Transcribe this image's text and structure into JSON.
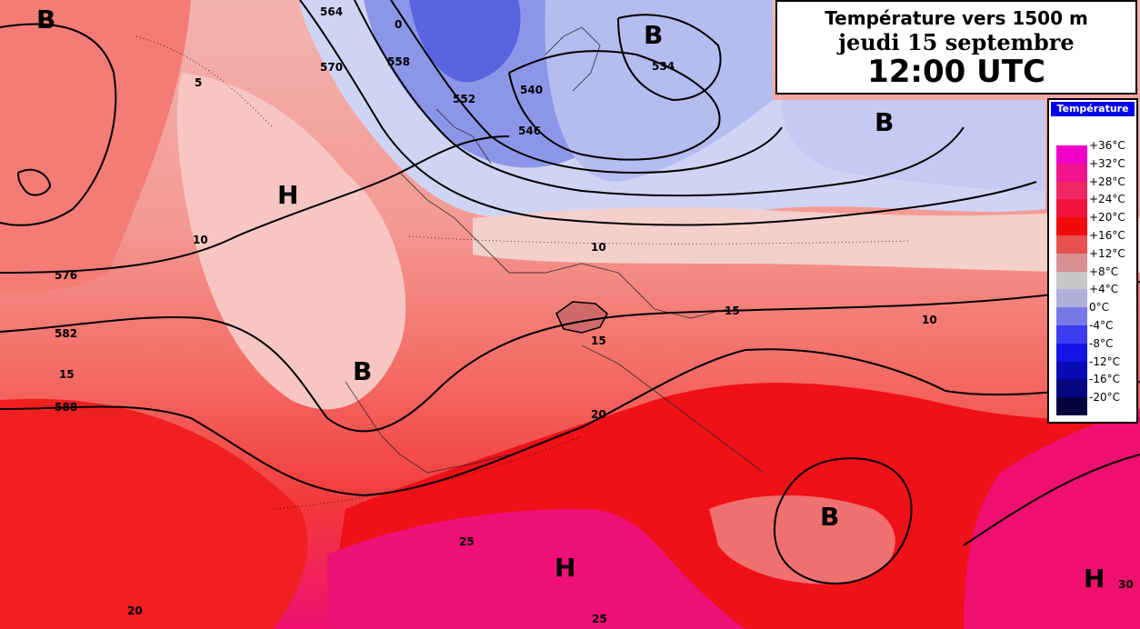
{
  "title": {
    "line1": "Température vers 1500 m",
    "line2": "jeudi 15 septembre",
    "line3": "12:00 UTC"
  },
  "legend": {
    "title": "Température",
    "items": [
      {
        "label": "+36°C",
        "color": "#f000c8"
      },
      {
        "label": "+32°C",
        "color": "#f0148c"
      },
      {
        "label": "+28°C",
        "color": "#f02864"
      },
      {
        "label": "+24°C",
        "color": "#f0143c"
      },
      {
        "label": "+20°C",
        "color": "#f00a0a"
      },
      {
        "label": "+16°C",
        "color": "#e85050"
      },
      {
        "label": "+12°C",
        "color": "#d89090"
      },
      {
        "label": "+8°C",
        "color": "#c8c8c8"
      },
      {
        "label": "+4°C",
        "color": "#b0b0dc"
      },
      {
        "label": "0°C",
        "color": "#7878e8"
      },
      {
        "label": "-4°C",
        "color": "#3c3cf0"
      },
      {
        "label": "-8°C",
        "color": "#1414e6"
      },
      {
        "label": "-12°C",
        "color": "#0a0ab4"
      },
      {
        "label": "-16°C",
        "color": "#060680"
      },
      {
        "label": "-20°C",
        "color": "#030340"
      }
    ]
  },
  "pressure_centers": [
    {
      "type": "B"
    },
    {
      "type": "B"
    },
    {
      "type": "B"
    },
    {
      "type": "H"
    },
    {
      "type": "B"
    },
    {
      "type": "B"
    },
    {
      "type": "H"
    },
    {
      "type": "H"
    }
  ],
  "contour_labels": [
    "564",
    "570",
    "558",
    "552",
    "540",
    "546",
    "534",
    "576",
    "582",
    "588"
  ],
  "temperature_labels": [
    "10",
    "10",
    "10",
    "15",
    "15",
    "15",
    "20",
    "25",
    "25",
    "20",
    "30",
    "5",
    "0"
  ]
}
